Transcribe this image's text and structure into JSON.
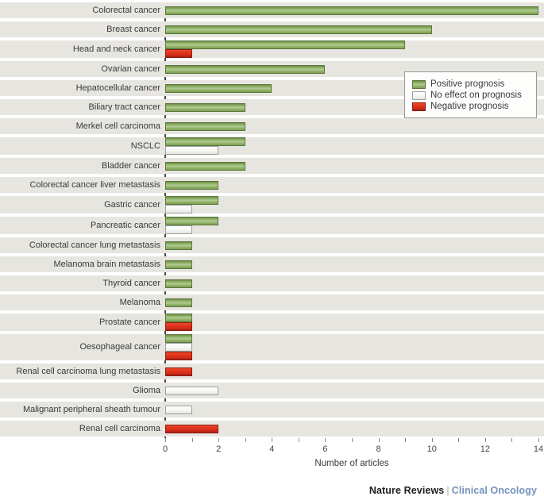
{
  "chart_data": {
    "type": "bar",
    "orientation": "horizontal",
    "title": "",
    "xlabel": "Number of articles",
    "xlim": [
      0,
      14
    ],
    "x_ticks": [
      0,
      2,
      4,
      6,
      8,
      10,
      12,
      14
    ],
    "minor_ticks": [
      1,
      3,
      5,
      7,
      9,
      11,
      13
    ],
    "grid": false,
    "legend_position": "upper-right",
    "legend": [
      {
        "key": "positive",
        "label": "Positive prognosis",
        "color": "#93b56b"
      },
      {
        "key": "no_effect",
        "label": "No effect on prognosis",
        "color": "#f4f5f2"
      },
      {
        "key": "negative",
        "label": "Negative prognosis",
        "color": "#e0311c"
      }
    ],
    "rows": [
      {
        "category": "Colorectal cancer",
        "bars": [
          {
            "type": "positive",
            "value": 14
          }
        ]
      },
      {
        "category": "Breast cancer",
        "bars": [
          {
            "type": "positive",
            "value": 10
          }
        ]
      },
      {
        "category": "Head and neck cancer",
        "bars": [
          {
            "type": "positive",
            "value": 9
          },
          {
            "type": "negative",
            "value": 1
          }
        ]
      },
      {
        "category": "Ovarian cancer",
        "bars": [
          {
            "type": "positive",
            "value": 6
          }
        ]
      },
      {
        "category": "Hepatocellular cancer",
        "bars": [
          {
            "type": "positive",
            "value": 4
          }
        ]
      },
      {
        "category": "Biliary tract cancer",
        "bars": [
          {
            "type": "positive",
            "value": 3
          }
        ]
      },
      {
        "category": "Merkel cell carcinoma",
        "bars": [
          {
            "type": "positive",
            "value": 3
          }
        ]
      },
      {
        "category": "NSCLC",
        "bars": [
          {
            "type": "positive",
            "value": 3
          },
          {
            "type": "no_effect",
            "value": 2
          }
        ]
      },
      {
        "category": "Bladder cancer",
        "bars": [
          {
            "type": "positive",
            "value": 3
          }
        ]
      },
      {
        "category": "Colorectal cancer liver metastasis",
        "bars": [
          {
            "type": "positive",
            "value": 2
          }
        ]
      },
      {
        "category": "Gastric cancer",
        "bars": [
          {
            "type": "positive",
            "value": 2
          },
          {
            "type": "no_effect",
            "value": 1
          }
        ]
      },
      {
        "category": "Pancreatic cancer",
        "bars": [
          {
            "type": "positive",
            "value": 2
          },
          {
            "type": "no_effect",
            "value": 1
          }
        ]
      },
      {
        "category": "Colorectal cancer lung metastasis",
        "bars": [
          {
            "type": "positive",
            "value": 1
          }
        ]
      },
      {
        "category": "Melanoma brain metastasis",
        "bars": [
          {
            "type": "positive",
            "value": 1
          }
        ]
      },
      {
        "category": "Thyroid cancer",
        "bars": [
          {
            "type": "positive",
            "value": 1
          }
        ]
      },
      {
        "category": "Melanoma",
        "bars": [
          {
            "type": "positive",
            "value": 1
          }
        ]
      },
      {
        "category": "Prostate cancer",
        "bars": [
          {
            "type": "positive",
            "value": 1
          },
          {
            "type": "negative",
            "value": 1
          }
        ]
      },
      {
        "category": "Oesophageal cancer",
        "bars": [
          {
            "type": "positive",
            "value": 1
          },
          {
            "type": "no_effect",
            "value": 1
          },
          {
            "type": "negative",
            "value": 1
          }
        ]
      },
      {
        "category": "Renal cell carcinoma lung metastasis",
        "bars": [
          {
            "type": "negative",
            "value": 1
          }
        ]
      },
      {
        "category": "Glioma",
        "bars": [
          {
            "type": "no_effect",
            "value": 2
          }
        ]
      },
      {
        "category": "Malignant peripheral sheath tumour",
        "bars": [
          {
            "type": "no_effect",
            "value": 1
          }
        ]
      },
      {
        "category": "Renal cell carcinoma",
        "bars": [
          {
            "type": "negative",
            "value": 2
          }
        ]
      }
    ]
  },
  "colors": {
    "positive_green": "#93b56b",
    "no_effect_white": "#f4f5f2",
    "negative_red": "#e0311c",
    "row_stripe": "#e6e5e0",
    "axis": "#4c4c4e",
    "journal_blue": "#7492ba"
  },
  "footer": {
    "brand": "Nature Reviews",
    "separator": "|",
    "journal": "Clinical Oncology"
  }
}
